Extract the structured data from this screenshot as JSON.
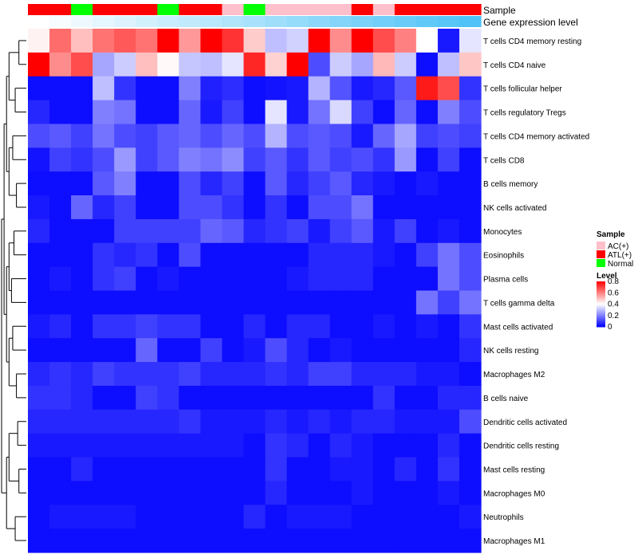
{
  "chart_data": {
    "type": "heatmap",
    "annotation_labels": {
      "sample": "Sample",
      "expression": "Gene expression level"
    },
    "rows": [
      "T cells CD4 memory resting",
      "T cells CD4 naive",
      "T cells follicular helper",
      "T cells regulatory  Tregs",
      "T cells CD4 memory activated",
      "T cells CD8",
      "B cells memory",
      "NK cells activated",
      "Monocytes",
      "Eosinophils",
      "Plasma cells",
      "T cells gamma delta",
      "Mast cells activated",
      "NK cells resting",
      "Macrophages M2",
      "B cells naive",
      "Dendritic cells activated",
      "Dendritic cells resting",
      "Mast cells resting",
      "Macrophages M0",
      "Neutrophils",
      "Macrophages M1"
    ],
    "sample_groups": [
      "ATL(+)",
      "ATL(+)",
      "Normal",
      "ATL(+)",
      "ATL(+)",
      "ATL(+)",
      "Normal",
      "ATL(+)",
      "ATL(+)",
      "AC(+)",
      "Normal",
      "AC(+)",
      "AC(+)",
      "AC(+)",
      "AC(+)",
      "ATL(+)",
      "AC(+)",
      "ATL(+)",
      "ATL(+)",
      "ATL(+)",
      "ATL(+)"
    ],
    "expression_gradient": [
      0.0,
      0.05,
      0.1,
      0.15,
      0.2,
      0.25,
      0.3,
      0.35,
      0.4,
      0.45,
      0.5,
      0.55,
      0.6,
      0.65,
      0.7,
      0.75,
      0.8,
      0.85,
      0.9,
      0.95,
      1.0
    ],
    "values": [
      [
        0.42,
        0.63,
        0.5,
        0.62,
        0.66,
        0.62,
        0.8,
        0.56,
        0.8,
        0.72,
        0.48,
        0.3,
        0.33,
        0.8,
        0.58,
        0.8,
        0.68,
        0.6,
        0.4,
        0.04,
        0.36
      ],
      [
        0.8,
        0.58,
        0.68,
        0.26,
        0.32,
        0.5,
        0.41,
        0.31,
        0.3,
        0.36,
        0.74,
        0.47,
        0.8,
        0.12,
        0.32,
        0.26,
        0.51,
        0.32,
        0.02,
        0.3,
        0.49
      ],
      [
        0.02,
        0.02,
        0.02,
        0.3,
        0.08,
        0.02,
        0.02,
        0.2,
        0.05,
        0.07,
        0.02,
        0.03,
        0.04,
        0.28,
        0.13,
        0.04,
        0.06,
        0.14,
        0.76,
        0.68,
        0.08
      ],
      [
        0.06,
        0.02,
        0.02,
        0.2,
        0.18,
        0.02,
        0.02,
        0.16,
        0.04,
        0.1,
        0.02,
        0.36,
        0.04,
        0.18,
        0.34,
        0.1,
        0.02,
        0.16,
        0.02,
        0.2,
        0.12
      ],
      [
        0.12,
        0.14,
        0.1,
        0.18,
        0.12,
        0.1,
        0.14,
        0.16,
        0.12,
        0.16,
        0.12,
        0.28,
        0.12,
        0.14,
        0.12,
        0.04,
        0.16,
        0.26,
        0.1,
        0.12,
        0.1
      ],
      [
        0.03,
        0.1,
        0.08,
        0.12,
        0.24,
        0.1,
        0.14,
        0.2,
        0.18,
        0.22,
        0.1,
        0.14,
        0.08,
        0.14,
        0.1,
        0.12,
        0.08,
        0.24,
        0.02,
        0.1,
        0.02
      ],
      [
        0.02,
        0.02,
        0.02,
        0.14,
        0.2,
        0.02,
        0.02,
        0.12,
        0.06,
        0.1,
        0.02,
        0.14,
        0.06,
        0.1,
        0.14,
        0.06,
        0.04,
        0.02,
        0.04,
        0.02,
        0.02
      ],
      [
        0.04,
        0.02,
        0.16,
        0.06,
        0.1,
        0.02,
        0.02,
        0.12,
        0.12,
        0.08,
        0.02,
        0.08,
        0.02,
        0.12,
        0.12,
        0.18,
        0.02,
        0.02,
        0.02,
        0.02,
        0.02
      ],
      [
        0.06,
        0.02,
        0.02,
        0.02,
        0.1,
        0.1,
        0.1,
        0.1,
        0.16,
        0.14,
        0.06,
        0.08,
        0.1,
        0.04,
        0.1,
        0.14,
        0.04,
        0.1,
        0.02,
        0.04,
        0.02
      ],
      [
        0.02,
        0.02,
        0.02,
        0.08,
        0.06,
        0.08,
        0.02,
        0.12,
        0.02,
        0.02,
        0.02,
        0.02,
        0.02,
        0.06,
        0.06,
        0.06,
        0.04,
        0.02,
        0.1,
        0.18,
        0.12
      ],
      [
        0.02,
        0.04,
        0.02,
        0.08,
        0.1,
        0.02,
        0.04,
        0.02,
        0.02,
        0.02,
        0.02,
        0.02,
        0.04,
        0.06,
        0.06,
        0.06,
        0.02,
        0.02,
        0.02,
        0.18,
        0.12
      ],
      [
        0.02,
        0.02,
        0.02,
        0.02,
        0.02,
        0.02,
        0.02,
        0.02,
        0.02,
        0.02,
        0.02,
        0.02,
        0.02,
        0.02,
        0.02,
        0.02,
        0.02,
        0.02,
        0.18,
        0.1,
        0.18
      ],
      [
        0.04,
        0.06,
        0.02,
        0.08,
        0.08,
        0.1,
        0.08,
        0.08,
        0.02,
        0.02,
        0.06,
        0.02,
        0.06,
        0.06,
        0.02,
        0.02,
        0.04,
        0.02,
        0.04,
        0.02,
        0.08
      ],
      [
        0.02,
        0.02,
        0.02,
        0.02,
        0.02,
        0.16,
        0.02,
        0.02,
        0.1,
        0.02,
        0.04,
        0.12,
        0.06,
        0.02,
        0.04,
        0.02,
        0.02,
        0.02,
        0.02,
        0.02,
        0.06
      ],
      [
        0.06,
        0.08,
        0.06,
        0.1,
        0.08,
        0.08,
        0.08,
        0.1,
        0.06,
        0.06,
        0.06,
        0.08,
        0.06,
        0.1,
        0.1,
        0.06,
        0.06,
        0.06,
        0.04,
        0.04,
        0.02
      ],
      [
        0.08,
        0.08,
        0.06,
        0.02,
        0.02,
        0.1,
        0.08,
        0.02,
        0.02,
        0.02,
        0.02,
        0.02,
        0.02,
        0.02,
        0.02,
        0.02,
        0.08,
        0.02,
        0.02,
        0.06,
        0.06
      ],
      [
        0.06,
        0.06,
        0.06,
        0.06,
        0.06,
        0.06,
        0.06,
        0.08,
        0.04,
        0.04,
        0.04,
        0.06,
        0.04,
        0.06,
        0.04,
        0.06,
        0.06,
        0.04,
        0.04,
        0.04,
        0.12
      ],
      [
        0.04,
        0.04,
        0.04,
        0.04,
        0.04,
        0.04,
        0.04,
        0.04,
        0.04,
        0.04,
        0.02,
        0.08,
        0.06,
        0.02,
        0.06,
        0.04,
        0.02,
        0.02,
        0.02,
        0.06,
        0.02
      ],
      [
        0.02,
        0.02,
        0.06,
        0.02,
        0.02,
        0.02,
        0.02,
        0.02,
        0.02,
        0.02,
        0.02,
        0.08,
        0.02,
        0.02,
        0.04,
        0.04,
        0.02,
        0.06,
        0.02,
        0.08,
        0.02
      ],
      [
        0.02,
        0.02,
        0.02,
        0.02,
        0.02,
        0.02,
        0.02,
        0.02,
        0.02,
        0.02,
        0.02,
        0.06,
        0.02,
        0.02,
        0.02,
        0.04,
        0.02,
        0.02,
        0.02,
        0.04,
        0.02
      ],
      [
        0.02,
        0.04,
        0.04,
        0.04,
        0.04,
        0.02,
        0.02,
        0.02,
        0.02,
        0.02,
        0.06,
        0.02,
        0.04,
        0.04,
        0.04,
        0.02,
        0.02,
        0.02,
        0.02,
        0.02,
        0.04
      ],
      [
        0.02,
        0.02,
        0.02,
        0.02,
        0.02,
        0.02,
        0.02,
        0.02,
        0.02,
        0.02,
        0.02,
        0.02,
        0.02,
        0.02,
        0.02,
        0.02,
        0.02,
        0.02,
        0.02,
        0.02,
        0.02
      ]
    ],
    "row_dendrogram": [
      {
        "a": 0,
        "b": 1,
        "height": 0.3
      },
      {
        "a": 2,
        "b": 3,
        "height": 0.45
      },
      {
        "a": 4,
        "b": 5,
        "height": 0.55
      },
      {
        "a": 6,
        "b": 7,
        "height": 0.4
      },
      {
        "a": 8,
        "b": 9,
        "height": 0.5
      },
      {
        "a": 10,
        "b": 11,
        "height": 0.6
      },
      {
        "a": 12,
        "b": 13,
        "height": 0.55
      },
      {
        "a": 14,
        "b": 15,
        "height": 0.4
      },
      {
        "a": 16,
        "b": 17,
        "height": 0.35
      },
      {
        "a": 18,
        "b": 19,
        "height": 0.3
      },
      {
        "a": 20,
        "b": 21,
        "height": 0.45
      }
    ],
    "legend": {
      "sample_title": "Sample",
      "sample_items": [
        {
          "label": "AC(+)",
          "color": "#ffc0cb"
        },
        {
          "label": "ATL(+)",
          "color": "#ff0000"
        },
        {
          "label": "Normal",
          "color": "#00ff00"
        }
      ],
      "level_title": "Level",
      "level_ticks": [
        "0.8",
        "0.6",
        "0.4",
        "0.2",
        "0"
      ],
      "level_tick_values": [
        0.8,
        0.6,
        0.4,
        0.2,
        0
      ],
      "level_range": [
        0,
        0.8
      ]
    },
    "colors": {
      "low": "#0000ff",
      "mid": "#ffffff",
      "high": "#ff0000",
      "expression_start": "#ffffff",
      "expression_end": "#4fc3f7"
    }
  }
}
